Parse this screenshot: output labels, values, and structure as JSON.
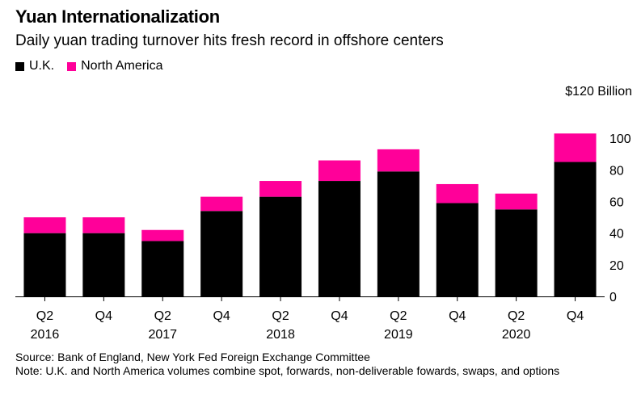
{
  "title": "Yuan Internationalization",
  "subtitle": "Daily yuan trading turnover hits fresh record in offshore centers",
  "legend": [
    {
      "label": "U.K.",
      "color": "#000000"
    },
    {
      "label": "North America",
      "color": "#ff0099"
    }
  ],
  "footer": {
    "source": "Source: Bank of England, New York Fed Foreign Exchange Committee",
    "note": "Note: U.K. and North America volumes combine spot, forwards, non-deliverable fowards, swaps, and options"
  },
  "chart_data": {
    "type": "bar",
    "stacked": true,
    "title": "Yuan Internationalization",
    "categories": [
      "Q2 2016",
      "Q4 2016",
      "Q2 2017",
      "Q4 2017",
      "Q2 2018",
      "Q4 2018",
      "Q2 2019",
      "Q4 2019",
      "Q2 2020",
      "Q4 2020"
    ],
    "tick_labels": [
      {
        "line1": "Q2",
        "line2": "2016"
      },
      {
        "line1": "Q4",
        "line2": ""
      },
      {
        "line1": "Q2",
        "line2": "2017"
      },
      {
        "line1": "Q4",
        "line2": ""
      },
      {
        "line1": "Q2",
        "line2": "2018"
      },
      {
        "line1": "Q4",
        "line2": ""
      },
      {
        "line1": "Q2",
        "line2": "2019"
      },
      {
        "line1": "Q4",
        "line2": ""
      },
      {
        "line1": "Q2",
        "line2": "2020"
      },
      {
        "line1": "Q4",
        "line2": ""
      }
    ],
    "series": [
      {
        "name": "U.K.",
        "color": "#000000",
        "values": [
          40,
          40,
          35,
          54,
          63,
          73,
          79,
          59,
          55,
          85
        ]
      },
      {
        "name": "North America",
        "color": "#ff0099",
        "values": [
          10,
          10,
          7,
          9,
          10,
          13,
          14,
          12,
          10,
          18
        ]
      }
    ],
    "ylim": [
      0,
      120
    ],
    "yticks": [
      0,
      20,
      40,
      60,
      80,
      100
    ],
    "ytick_top_label": "$120 Billion",
    "ylabel": "",
    "xlabel": "",
    "y_axis_position": "right"
  }
}
